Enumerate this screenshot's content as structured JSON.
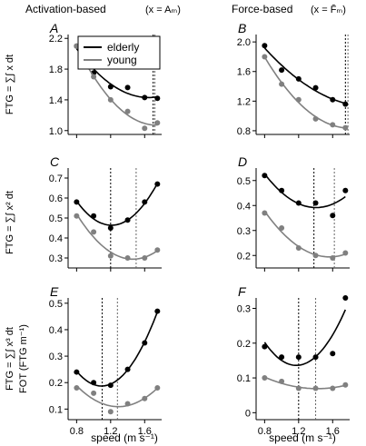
{
  "figure": {
    "col_titles": [
      {
        "text": "Activation-based",
        "math": "(x = Aₘ)"
      },
      {
        "text": "Force-based",
        "math": "(x = F̄ₘ)"
      }
    ],
    "row_ylabels": [
      [
        "FTG = ∑∫ x dt"
      ],
      [
        "FTG = ∑∫ x² dt"
      ],
      [
        "FTG = ∑∫ x³ dt",
        "FOT (FTG m⁻¹)"
      ]
    ],
    "xlabel": "speed (m s⁻¹)",
    "colors": {
      "elderly": "#000000",
      "young": "#808080"
    }
  },
  "chart_data": [
    {
      "panel": "A",
      "type": "scatter",
      "xlim": [
        0.7,
        1.8
      ],
      "ylim": [
        0.95,
        2.25
      ],
      "xticks": [],
      "xtick_labels": [],
      "yticks": [
        1.0,
        1.4,
        1.8,
        2.2
      ],
      "ytick_labels": [
        "1.0",
        "1.4",
        "1.8",
        "2.2"
      ],
      "legend": {
        "placement": "top-right",
        "entries": [
          "elderly",
          "young"
        ]
      },
      "series": [
        {
          "name": "elderly",
          "x": [
            0.8,
            1.0,
            1.2,
            1.4,
            1.6,
            1.75
          ],
          "y": [
            2.1,
            1.75,
            1.57,
            1.56,
            1.43,
            1.42
          ],
          "fit_x": [
            0.8,
            1.75
          ],
          "fit_y": [
            2.08,
            1.42
          ]
        },
        {
          "name": "young",
          "x": [
            0.8,
            1.0,
            1.2,
            1.4,
            1.6,
            1.75
          ],
          "y": [
            2.1,
            1.7,
            1.4,
            1.25,
            1.03,
            1.1
          ],
          "fit_x": [
            0.8,
            1.75
          ],
          "fit_y": [
            2.09,
            1.08
          ]
        }
      ],
      "vlines": [
        1.7,
        1.72
      ]
    },
    {
      "panel": "B",
      "type": "scatter",
      "xlim": [
        0.7,
        1.8
      ],
      "ylim": [
        0.75,
        2.1
      ],
      "xticks": [],
      "xtick_labels": [],
      "yticks": [
        0.8,
        1.2,
        1.6,
        2.0
      ],
      "ytick_labels": [
        "0.8",
        "1.2",
        "1.6",
        "2.0"
      ],
      "series": [
        {
          "name": "elderly",
          "x": [
            0.8,
            1.0,
            1.2,
            1.4,
            1.6,
            1.75
          ],
          "y": [
            1.95,
            1.62,
            1.5,
            1.38,
            1.22,
            1.16
          ],
          "fit_x": [
            0.8,
            1.75
          ],
          "fit_y": [
            1.92,
            1.16
          ]
        },
        {
          "name": "young",
          "x": [
            0.8,
            1.0,
            1.2,
            1.4,
            1.6,
            1.75
          ],
          "y": [
            1.8,
            1.43,
            1.22,
            0.96,
            0.88,
            0.84
          ],
          "fit_x": [
            0.8,
            1.75
          ],
          "fit_y": [
            1.77,
            0.84
          ]
        }
      ],
      "vlines": [
        1.75,
        1.78
      ]
    },
    {
      "panel": "C",
      "type": "scatter",
      "xlim": [
        0.7,
        1.8
      ],
      "ylim": [
        0.25,
        0.75
      ],
      "xticks": [],
      "xtick_labels": [],
      "yticks": [
        0.3,
        0.4,
        0.5,
        0.6,
        0.7
      ],
      "ytick_labels": [
        "0.3",
        "0.4",
        "0.5",
        "0.6",
        "0.7"
      ],
      "series": [
        {
          "name": "elderly",
          "x": [
            0.8,
            1.0,
            1.2,
            1.4,
            1.6,
            1.75
          ],
          "y": [
            0.58,
            0.51,
            0.45,
            0.49,
            0.58,
            0.67
          ],
          "fit_x": [
            0.8,
            1.75
          ],
          "fit_y": [
            0.56,
            0.65
          ]
        },
        {
          "name": "young",
          "x": [
            0.8,
            1.0,
            1.2,
            1.4,
            1.6,
            1.75
          ],
          "y": [
            0.51,
            0.43,
            0.31,
            0.3,
            0.3,
            0.34
          ],
          "fit_x": [
            0.8,
            1.75
          ],
          "fit_y": [
            0.52,
            0.33
          ]
        }
      ],
      "vlines": [
        1.2,
        1.5
      ]
    },
    {
      "panel": "D",
      "type": "scatter",
      "xlim": [
        0.7,
        1.8
      ],
      "ylim": [
        0.15,
        0.55
      ],
      "xticks": [],
      "xtick_labels": [],
      "yticks": [
        0.2,
        0.3,
        0.4,
        0.5
      ],
      "ytick_labels": [
        "0.2",
        "0.3",
        "0.4",
        "0.5"
      ],
      "series": [
        {
          "name": "elderly",
          "x": [
            0.8,
            1.0,
            1.2,
            1.4,
            1.6,
            1.75
          ],
          "y": [
            0.52,
            0.46,
            0.41,
            0.41,
            0.36,
            0.46
          ],
          "fit_x": [
            0.8,
            1.75
          ],
          "fit_y": [
            0.52,
            0.44
          ]
        },
        {
          "name": "young",
          "x": [
            0.8,
            1.0,
            1.2,
            1.4,
            1.6,
            1.75
          ],
          "y": [
            0.37,
            0.31,
            0.23,
            0.2,
            0.19,
            0.21
          ],
          "fit_x": [
            0.8,
            1.75
          ],
          "fit_y": [
            0.36,
            0.2
          ]
        }
      ],
      "vlines": [
        1.38,
        1.62
      ]
    },
    {
      "panel": "E",
      "type": "scatter",
      "xlim": [
        0.7,
        1.8
      ],
      "ylim": [
        0.06,
        0.52
      ],
      "xticks": [
        0.8,
        1.2,
        1.6
      ],
      "xtick_labels": [
        "0.8",
        "1.2",
        "1.6"
      ],
      "yticks": [
        0.1,
        0.2,
        0.3,
        0.4,
        0.5
      ],
      "ytick_labels": [
        "0.1",
        "0.2",
        "0.3",
        "0.4",
        "0.5"
      ],
      "series": [
        {
          "name": "elderly",
          "x": [
            0.8,
            1.0,
            1.2,
            1.4,
            1.6,
            1.75
          ],
          "y": [
            0.24,
            0.2,
            0.19,
            0.25,
            0.35,
            0.47
          ],
          "fit_x": [
            0.8,
            1.75
          ],
          "fit_y": [
            0.23,
            0.46
          ]
        },
        {
          "name": "young",
          "x": [
            0.8,
            1.0,
            1.2,
            1.4,
            1.6,
            1.75
          ],
          "y": [
            0.18,
            0.16,
            0.09,
            0.12,
            0.14,
            0.18
          ],
          "fit_x": [
            0.8,
            1.75
          ],
          "fit_y": [
            0.18,
            0.18
          ]
        }
      ],
      "vlines": [
        1.1,
        1.28
      ]
    },
    {
      "panel": "F",
      "type": "scatter",
      "xlim": [
        0.7,
        1.8
      ],
      "ylim": [
        -0.02,
        0.33
      ],
      "xticks": [
        0.8,
        1.2,
        1.6
      ],
      "xtick_labels": [
        "0.8",
        "1.2",
        "1.6"
      ],
      "yticks": [
        0,
        0.1,
        0.2,
        0.3
      ],
      "ytick_labels": [
        "0",
        "0.1",
        "0.2",
        "0.3"
      ],
      "series": [
        {
          "name": "elderly",
          "x": [
            0.8,
            1.0,
            1.2,
            1.4,
            1.6,
            1.75
          ],
          "y": [
            0.19,
            0.16,
            0.16,
            0.16,
            0.17,
            0.33
          ],
          "fit_x": [
            0.8,
            1.75
          ],
          "fit_y": [
            0.21,
            0.28
          ]
        },
        {
          "name": "young",
          "x": [
            0.8,
            1.0,
            1.2,
            1.4,
            1.6,
            1.75
          ],
          "y": [
            0.1,
            0.09,
            0.07,
            0.07,
            0.07,
            0.08
          ],
          "fit_x": [
            0.8,
            1.75
          ],
          "fit_y": [
            0.1,
            0.08
          ]
        }
      ],
      "vlines": [
        1.2,
        1.4
      ]
    }
  ]
}
